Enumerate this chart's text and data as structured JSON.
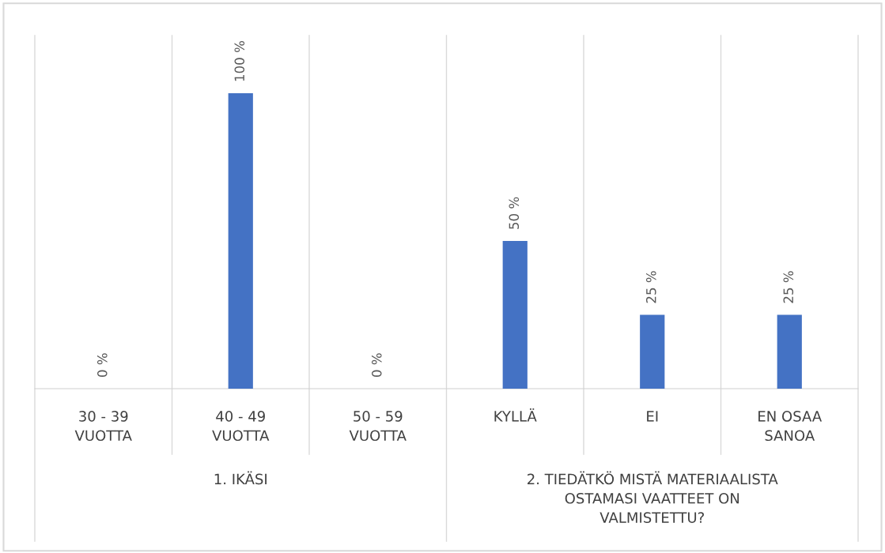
{
  "chart_data": {
    "type": "bar",
    "categories": [
      "30 - 39\nVUOTTA",
      "40 - 49\nVUOTTA",
      "50 - 59\nVUOTTA",
      "KYLLÄ",
      "EI",
      "EN OSAA\nSANOA"
    ],
    "values": [
      0,
      100,
      0,
      50,
      25,
      25
    ],
    "value_labels": [
      "0 %",
      "100 %",
      "0 %",
      "50 %",
      "25 %",
      "25 %"
    ],
    "color": "#4472c4",
    "annotations": [
      "1. IKÄSI",
      "2. TIEDÄTKÖ MISTÄ MATERIAALISTA\nOSTAMASI VAATTEET ON\nVALMISTETTU?"
    ],
    "grid": false,
    "legend": false
  }
}
